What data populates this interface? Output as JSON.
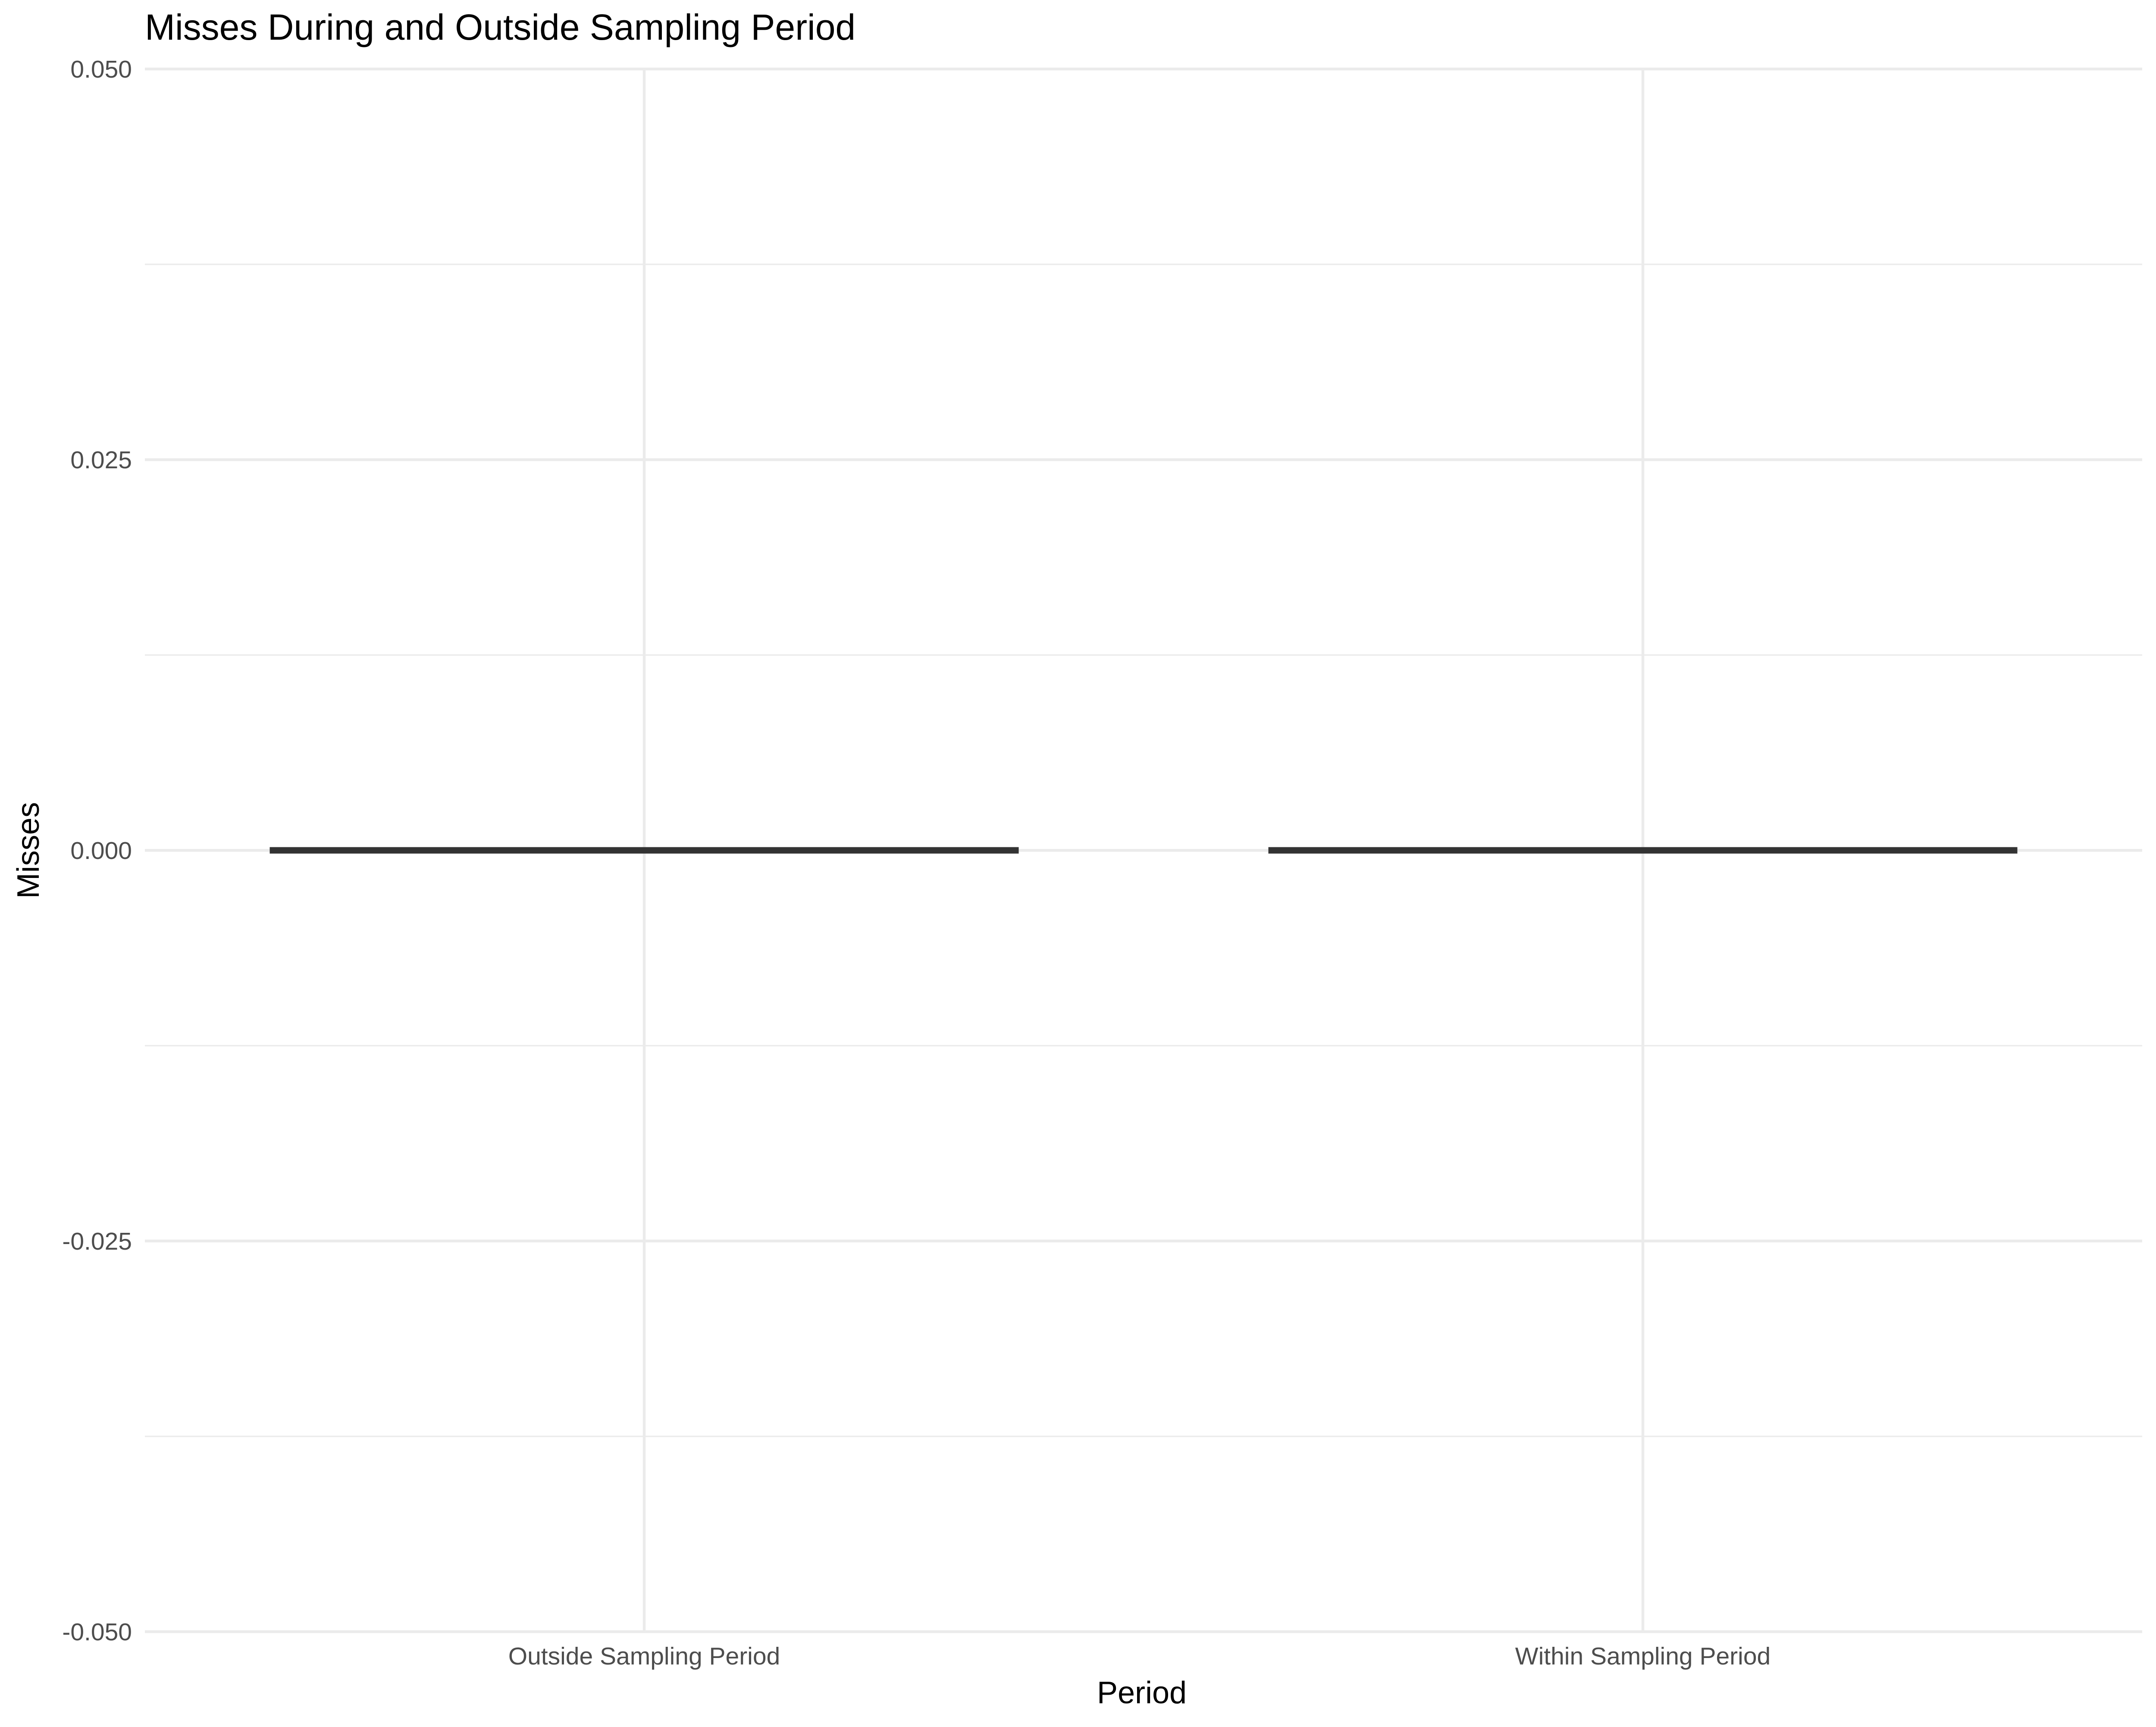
{
  "chart_data": {
    "type": "box",
    "title": "Misses During and Outside Sampling Period",
    "xlabel": "Period",
    "ylabel": "Misses",
    "categories": [
      "Outside Sampling Period",
      "Within Sampling Period"
    ],
    "series": [
      {
        "category": "Outside Sampling Period",
        "min": 0,
        "q1": 0,
        "median": 0,
        "q3": 0,
        "max": 0
      },
      {
        "category": "Within Sampling Period",
        "min": 0,
        "q1": 0,
        "median": 0,
        "q3": 0,
        "max": 0
      }
    ],
    "ylim": [
      -0.05,
      0.05
    ],
    "y_ticks": [
      "-0.050",
      "-0.025",
      "0.000",
      "0.025",
      "0.050"
    ],
    "grid": true,
    "legend": "none",
    "colors": {
      "box_line": "#333333",
      "grid": "#ebebeb",
      "tick_text": "#4d4d4d"
    }
  }
}
